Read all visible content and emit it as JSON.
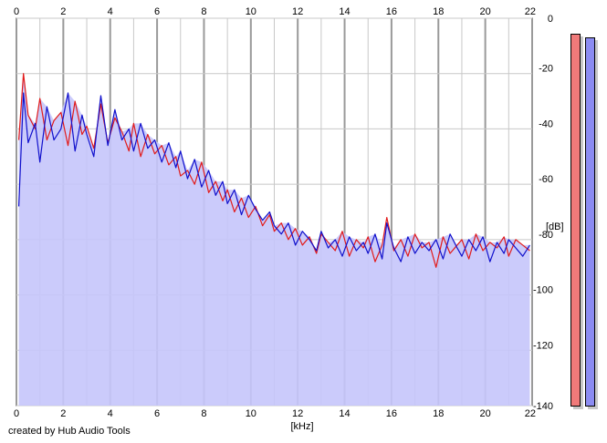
{
  "app": {
    "credit": "created by Hub Audio Tools"
  },
  "colors": {
    "fill": "#c5c5fb",
    "left_channel": "#e21a1a",
    "right_channel": "#1010cc",
    "grid": "#c8c8c8",
    "meter_left": "#f07a7a",
    "meter_right": "#8c8cf2"
  },
  "meters": {
    "left": {
      "level": 0.96
    },
    "right": {
      "level": 0.95
    }
  },
  "chart_data": {
    "type": "line",
    "title": "",
    "xlabel": "[kHz]",
    "ylabel": "[dB]",
    "xlim": [
      0,
      22
    ],
    "ylim": [
      -140,
      0
    ],
    "x_ticks": [
      "0",
      "2",
      "4",
      "6",
      "8",
      "10",
      "12",
      "14",
      "16",
      "18",
      "20",
      "22"
    ],
    "y_ticks": [
      "0",
      "-20",
      "-40",
      "-60",
      "-80",
      "-100",
      "-120",
      "-140"
    ],
    "grid": true,
    "series": [
      {
        "color": "red",
        "x": [
          0.1,
          0.3,
          0.5,
          0.8,
          1.0,
          1.3,
          1.6,
          1.9,
          2.2,
          2.5,
          2.8,
          3.0,
          3.3,
          3.6,
          3.9,
          4.2,
          4.5,
          4.8,
          5.0,
          5.3,
          5.6,
          5.9,
          6.2,
          6.5,
          6.8,
          7.0,
          7.3,
          7.6,
          7.9,
          8.2,
          8.5,
          8.8,
          9.0,
          9.3,
          9.6,
          9.9,
          10.2,
          10.5,
          10.8,
          11.0,
          11.3,
          11.6,
          11.9,
          12.2,
          12.5,
          12.8,
          13.0,
          13.3,
          13.6,
          13.9,
          14.2,
          14.5,
          14.8,
          15.0,
          15.3,
          15.6,
          15.8,
          16.1,
          16.4,
          16.7,
          17.0,
          17.3,
          17.6,
          17.9,
          18.2,
          18.5,
          18.8,
          19.0,
          19.3,
          19.6,
          19.9,
          20.2,
          20.5,
          20.8,
          21.0,
          21.3,
          21.6,
          21.9
        ],
        "y": [
          -44,
          -20,
          -35,
          -40,
          -29,
          -44,
          -37,
          -34,
          -46,
          -30,
          -42,
          -39,
          -47,
          -31,
          -45,
          -36,
          -41,
          -48,
          -38,
          -50,
          -42,
          -49,
          -46,
          -53,
          -50,
          -57,
          -55,
          -60,
          -52,
          -63,
          -59,
          -66,
          -62,
          -70,
          -65,
          -72,
          -68,
          -75,
          -71,
          -77,
          -74,
          -80,
          -76,
          -82,
          -79,
          -85,
          -78,
          -81,
          -84,
          -77,
          -86,
          -80,
          -83,
          -79,
          -88,
          -82,
          -72,
          -84,
          -80,
          -86,
          -78,
          -83,
          -81,
          -90,
          -79,
          -85,
          -82,
          -80,
          -87,
          -78,
          -84,
          -81,
          -83,
          -79,
          -86,
          -80,
          -82,
          -84
        ]
      },
      {
        "color": "blue",
        "x": [
          0.1,
          0.3,
          0.5,
          0.8,
          1.0,
          1.3,
          1.6,
          1.9,
          2.2,
          2.5,
          2.8,
          3.0,
          3.3,
          3.6,
          3.9,
          4.2,
          4.5,
          4.8,
          5.0,
          5.3,
          5.6,
          5.9,
          6.2,
          6.5,
          6.8,
          7.0,
          7.3,
          7.6,
          7.9,
          8.2,
          8.5,
          8.8,
          9.0,
          9.3,
          9.6,
          9.9,
          10.2,
          10.5,
          10.8,
          11.0,
          11.3,
          11.6,
          11.9,
          12.2,
          12.5,
          12.8,
          13.0,
          13.3,
          13.6,
          13.9,
          14.2,
          14.5,
          14.8,
          15.0,
          15.3,
          15.6,
          15.8,
          16.1,
          16.4,
          16.7,
          17.0,
          17.3,
          17.6,
          17.9,
          18.2,
          18.5,
          18.8,
          19.0,
          19.3,
          19.6,
          19.9,
          20.2,
          20.5,
          20.8,
          21.0,
          21.3,
          21.6,
          21.9
        ],
        "y": [
          -68,
          -27,
          -45,
          -38,
          -52,
          -32,
          -44,
          -40,
          -27,
          -48,
          -35,
          -42,
          -50,
          -28,
          -46,
          -33,
          -44,
          -40,
          -48,
          -38,
          -47,
          -44,
          -52,
          -45,
          -54,
          -48,
          -58,
          -51,
          -61,
          -55,
          -64,
          -59,
          -67,
          -62,
          -71,
          -64,
          -69,
          -73,
          -70,
          -75,
          -78,
          -74,
          -82,
          -77,
          -80,
          -84,
          -77,
          -83,
          -80,
          -86,
          -79,
          -84,
          -81,
          -85,
          -78,
          -87,
          -74,
          -83,
          -88,
          -79,
          -85,
          -81,
          -84,
          -80,
          -87,
          -78,
          -83,
          -86,
          -80,
          -84,
          -79,
          -88,
          -81,
          -85,
          -80,
          -83,
          -86,
          -82
        ]
      }
    ]
  }
}
